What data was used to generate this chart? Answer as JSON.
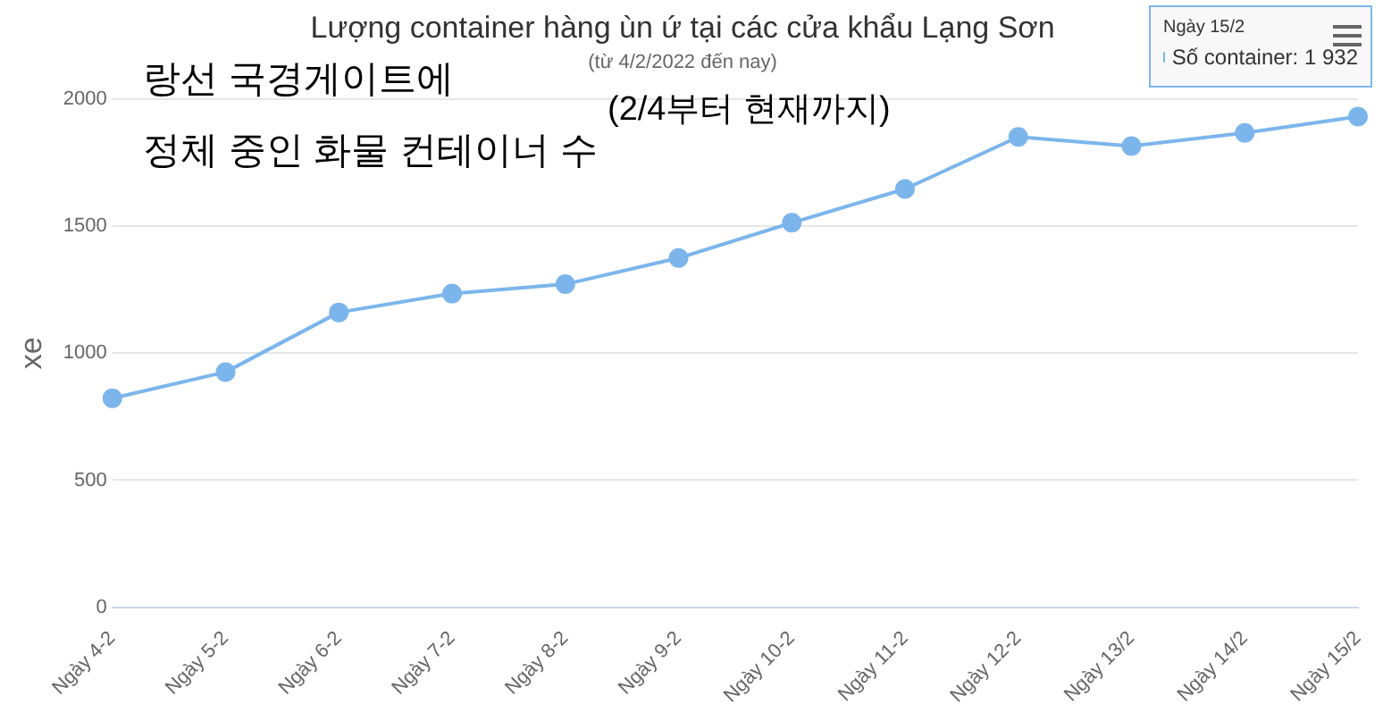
{
  "chart_data": {
    "type": "line",
    "title": "Lượng container hàng ùn ứ tại các cửa khẩu Lạng Sơn",
    "subtitle": "(từ 4/2/2022 đến nay)",
    "ylabel": "xe",
    "categories": [
      "Ngày 4-2",
      "Ngày 5-2",
      "Ngày 6-2",
      "Ngày 7-2",
      "Ngày 8-2",
      "Ngày 9-2",
      "Ngày 10-2",
      "Ngày 11-2",
      "Ngày 12-2",
      "Ngày 13/2",
      "Ngày 14/2",
      "Ngày 15/2"
    ],
    "series": [
      {
        "color": "#7cb5ec",
        "values": [
          823,
          926,
          1161,
          1235,
          1272,
          1375,
          1514,
          1647,
          1852,
          1816,
          1868,
          1932
        ]
      }
    ],
    "ylim": [
      0,
      2000
    ],
    "yticks": [
      0,
      500,
      1000,
      1500,
      2000
    ],
    "grid": "y",
    "legend": false,
    "marker": "circle",
    "line_style": "solid",
    "annotations": [
      "랑선 국경게이트에",
      "정체 중인 화물 컨테이너 수",
      "(2/4부터 현재까지)",
      "Ngày 15/2",
      "Số container: 1 932"
    ]
  }
}
